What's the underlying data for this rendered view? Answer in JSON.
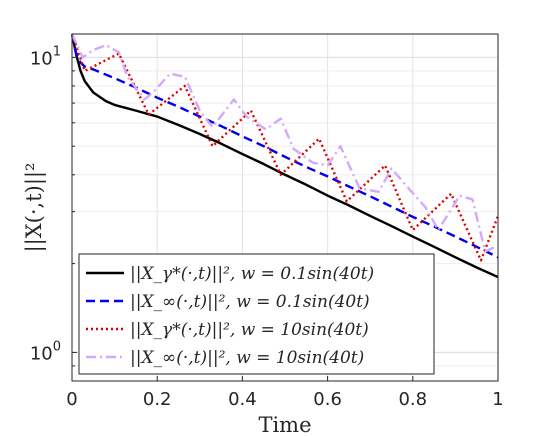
{
  "chart_data": {
    "type": "line",
    "xlabel": "Time",
    "ylabel": "||X(·,t)||²",
    "xlim": [
      0,
      1
    ],
    "ylim": [
      0.8,
      12
    ],
    "yscale": "log",
    "grid": true,
    "legend_position": "bottom-left",
    "x_ticks": [
      {
        "value": 0,
        "label": "0"
      },
      {
        "value": 0.2,
        "label": "0.2"
      },
      {
        "value": 0.4,
        "label": "0.4"
      },
      {
        "value": 0.6,
        "label": "0.6"
      },
      {
        "value": 0.8,
        "label": "0.8"
      },
      {
        "value": 1,
        "label": "1"
      }
    ],
    "y_ticks": [
      {
        "value": 1,
        "base": "10",
        "exp": "0"
      },
      {
        "value": 10,
        "base": "10",
        "exp": "1"
      }
    ],
    "series": [
      {
        "name": "||X_γ*(·,t)||², w = 0.1sin(40t)",
        "color": "#000000",
        "dash": "solid",
        "x": [
          0,
          0.01,
          0.02,
          0.03,
          0.05,
          0.08,
          0.1,
          0.15,
          0.2,
          0.25,
          0.3,
          0.35,
          0.4,
          0.45,
          0.5,
          0.55,
          0.6,
          0.65,
          0.7,
          0.75,
          0.8,
          0.85,
          0.9,
          0.95,
          1.0
        ],
        "y": [
          12.0,
          10.2,
          9.0,
          8.3,
          7.6,
          7.1,
          6.9,
          6.6,
          6.3,
          5.9,
          5.5,
          5.1,
          4.7,
          4.35,
          4.0,
          3.7,
          3.4,
          3.15,
          2.9,
          2.68,
          2.47,
          2.28,
          2.1,
          1.94,
          1.8
        ]
      },
      {
        "name": "||X_∞(·,t)||², w = 0.1sin(40t)",
        "color": "#0000ee",
        "dash": "dashed",
        "x": [
          0,
          0.01,
          0.02,
          0.03,
          0.05,
          0.1,
          0.15,
          0.2,
          0.25,
          0.3,
          0.35,
          0.4,
          0.45,
          0.5,
          0.55,
          0.6,
          0.65,
          0.7,
          0.75,
          0.8,
          0.85,
          0.9,
          0.95,
          1.0
        ],
        "y": [
          12.0,
          10.3,
          9.6,
          9.3,
          9.1,
          8.5,
          7.9,
          7.3,
          6.8,
          6.3,
          5.85,
          5.4,
          5.0,
          4.6,
          4.25,
          3.95,
          3.65,
          3.38,
          3.12,
          2.88,
          2.67,
          2.47,
          2.28,
          2.1
        ]
      },
      {
        "name": "||X_γ*(·,t)||², w = 10sin(40t)",
        "color": "#dd0000",
        "dash": "dotted",
        "x": [
          0,
          0.03,
          0.11,
          0.18,
          0.265,
          0.33,
          0.42,
          0.49,
          0.58,
          0.645,
          0.735,
          0.8,
          0.89,
          0.96,
          1.0
        ],
        "y": [
          12.0,
          9.0,
          10.3,
          6.4,
          8.0,
          5.0,
          6.6,
          4.0,
          5.3,
          3.25,
          4.3,
          2.6,
          3.45,
          2.05,
          2.9
        ]
      },
      {
        "name": "||X_∞(·,t)||², w = 10sin(40t)",
        "color": "#d4a8ff",
        "dash": "dashdot",
        "x": [
          0,
          0.025,
          0.05,
          0.08,
          0.11,
          0.13,
          0.17,
          0.19,
          0.23,
          0.265,
          0.3,
          0.33,
          0.38,
          0.41,
          0.455,
          0.49,
          0.52,
          0.565,
          0.6,
          0.63,
          0.675,
          0.72,
          0.75,
          0.79,
          0.83,
          0.86,
          0.91,
          0.94,
          0.97,
          1.0
        ],
        "y": [
          12.0,
          10.0,
          10.6,
          11.0,
          10.4,
          8.6,
          7.2,
          7.6,
          8.8,
          8.6,
          6.6,
          5.8,
          7.2,
          6.3,
          5.7,
          6.2,
          4.9,
          4.4,
          4.3,
          5.0,
          3.6,
          3.5,
          4.2,
          3.6,
          3.1,
          2.6,
          3.4,
          3.3,
          2.2,
          2.3
        ]
      }
    ]
  }
}
